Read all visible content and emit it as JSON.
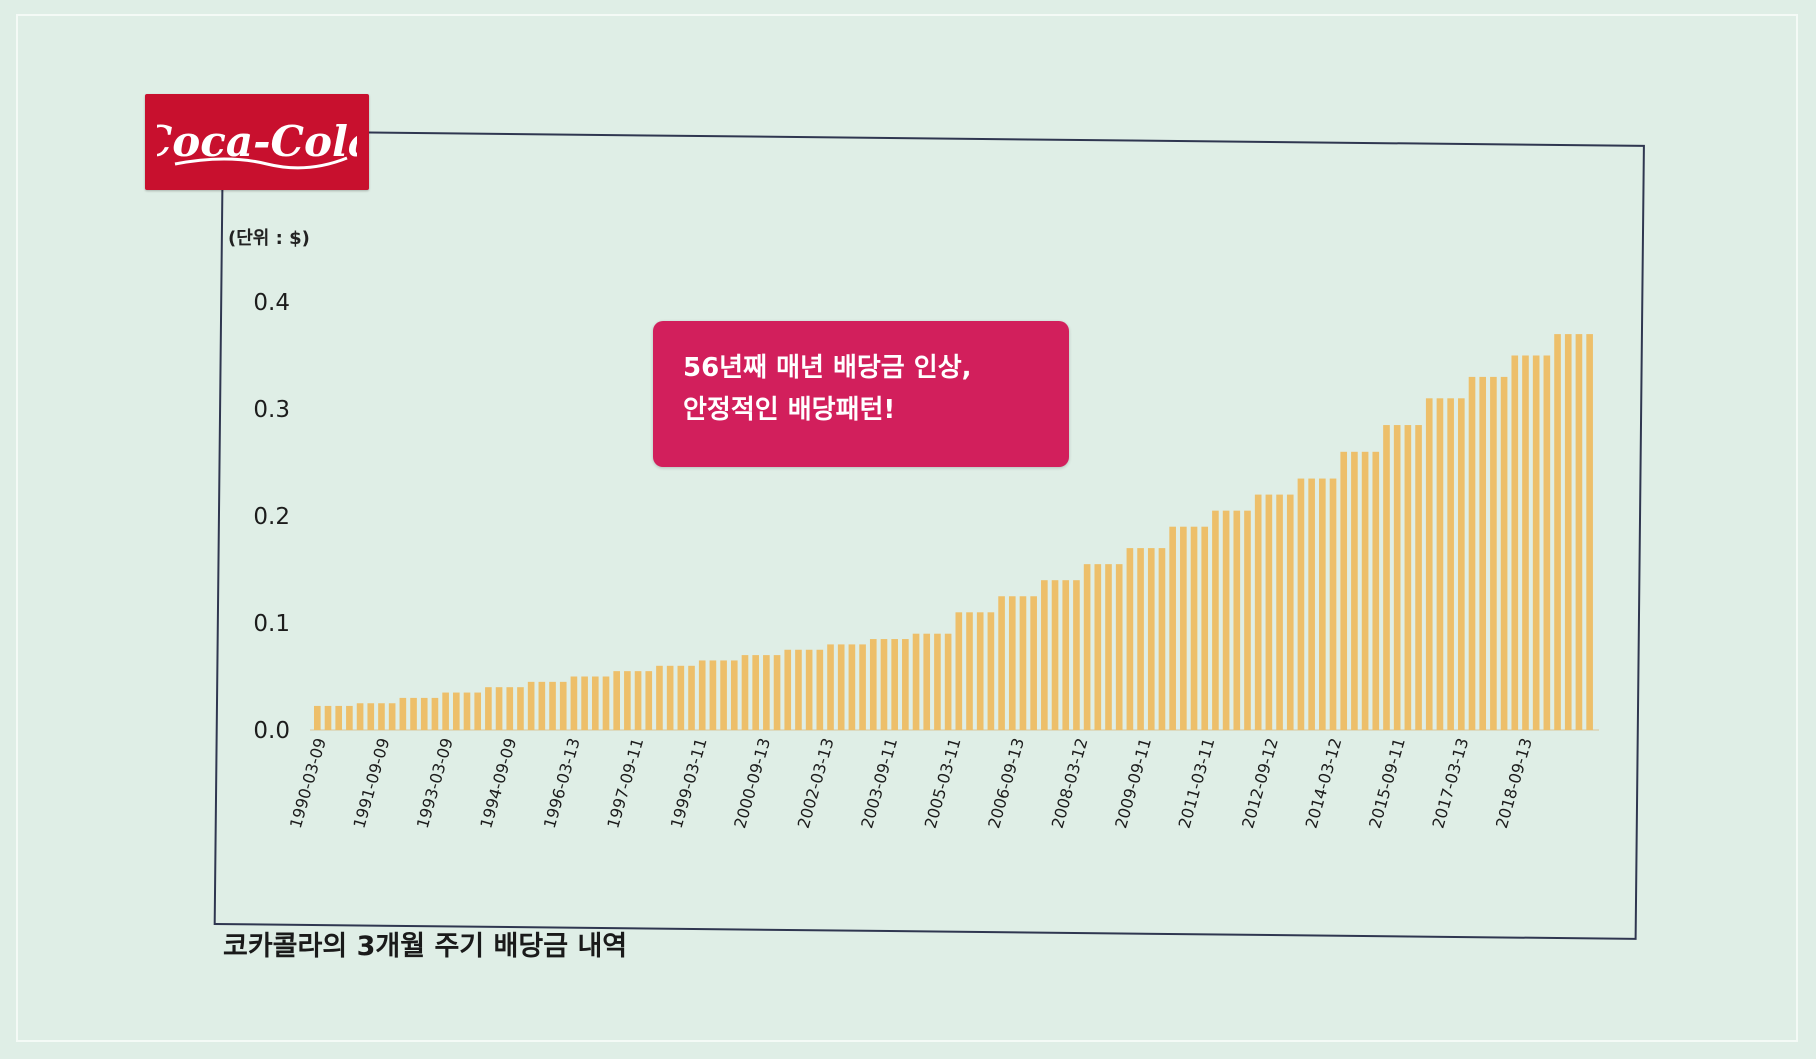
{
  "logo": {
    "text": "Coca-Cola"
  },
  "unit_label": "(단위 : $)",
  "callout": {
    "line1": "56년째 매년 배당금 인상,",
    "line2": "안정적인 배당패턴!"
  },
  "caption": "코카콜라의 3개월 주기 배당금 내역",
  "colors": {
    "bar": "#edbf6a",
    "callout": "#d21f5c",
    "logo": "#c8102e",
    "frame": "#2f3650"
  },
  "chart_data": {
    "type": "bar",
    "title": "",
    "xlabel": "",
    "ylabel": "(단위 : $)",
    "ylim": [
      0,
      0.4
    ],
    "yticks": [
      "0.0",
      "0.1",
      "0.2",
      "0.3",
      "0.4"
    ],
    "grid": false,
    "x_tick_labels": [
      "1990-03-09",
      "1991-09-09",
      "1993-03-09",
      "1994-09-09",
      "1996-03-13",
      "1997-09-11",
      "1999-03-11",
      "2000-09-13",
      "2002-03-13",
      "2003-09-11",
      "2005-03-11",
      "2006-09-13",
      "2008-03-12",
      "2009-09-11",
      "2011-03-11",
      "2012-09-12",
      "2014-03-12",
      "2015-09-11",
      "2017-03-13",
      "2018-09-13"
    ],
    "values": [
      0.0225,
      0.0225,
      0.0225,
      0.0225,
      0.025,
      0.025,
      0.025,
      0.025,
      0.03,
      0.03,
      0.03,
      0.03,
      0.035,
      0.035,
      0.035,
      0.035,
      0.04,
      0.04,
      0.04,
      0.04,
      0.045,
      0.045,
      0.045,
      0.045,
      0.05,
      0.05,
      0.05,
      0.05,
      0.055,
      0.055,
      0.055,
      0.055,
      0.06,
      0.06,
      0.06,
      0.06,
      0.065,
      0.065,
      0.065,
      0.065,
      0.07,
      0.07,
      0.07,
      0.07,
      0.075,
      0.075,
      0.075,
      0.075,
      0.08,
      0.08,
      0.08,
      0.08,
      0.085,
      0.085,
      0.085,
      0.085,
      0.09,
      0.09,
      0.09,
      0.09,
      0.11,
      0.11,
      0.11,
      0.11,
      0.125,
      0.125,
      0.125,
      0.125,
      0.14,
      0.14,
      0.14,
      0.14,
      0.155,
      0.155,
      0.155,
      0.155,
      0.17,
      0.17,
      0.17,
      0.17,
      0.19,
      0.19,
      0.19,
      0.19,
      0.205,
      0.205,
      0.205,
      0.205,
      0.22,
      0.22,
      0.22,
      0.22,
      0.235,
      0.235,
      0.235,
      0.235,
      0.26,
      0.26,
      0.26,
      0.26,
      0.285,
      0.285,
      0.285,
      0.285,
      0.31,
      0.31,
      0.31,
      0.31,
      0.33,
      0.33,
      0.33,
      0.33,
      0.35,
      0.35,
      0.35,
      0.35,
      0.37,
      0.37,
      0.37,
      0.37
    ]
  }
}
